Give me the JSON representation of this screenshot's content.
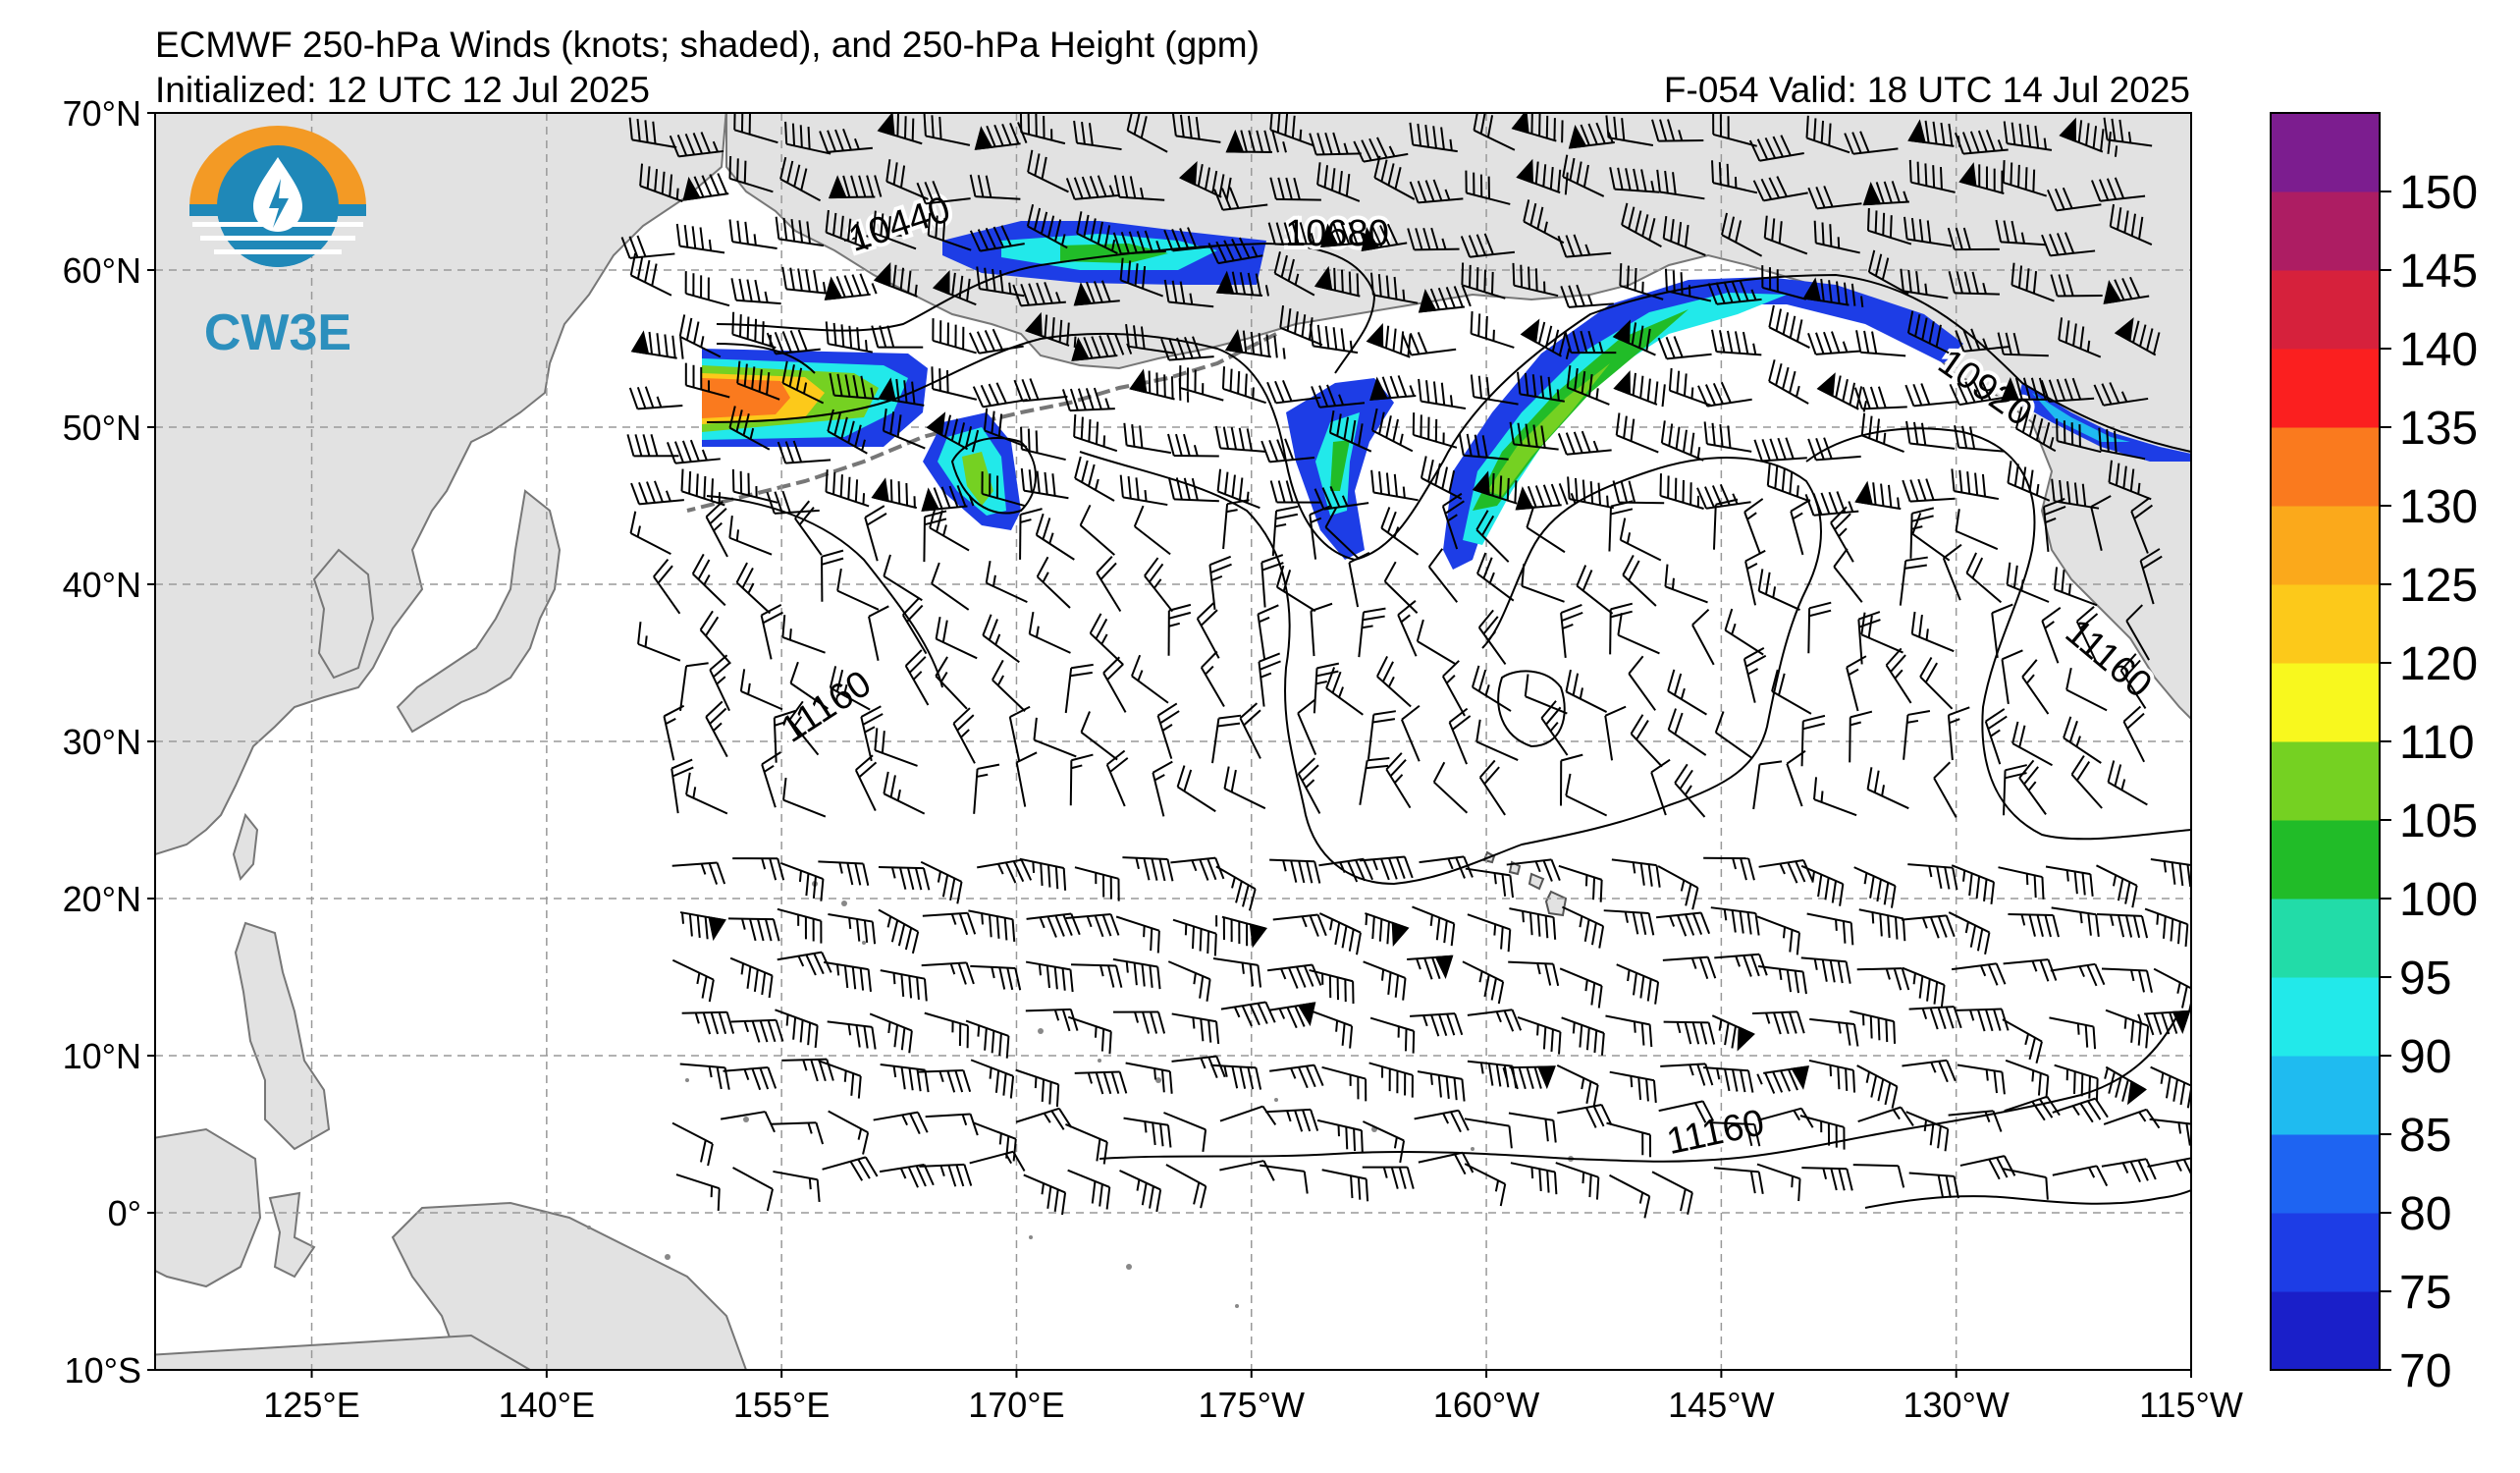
{
  "header": {
    "title": "ECMWF 250-hPa Winds (knots; shaded), and 250-hPa Height (gpm)",
    "initialized": "Initialized: 12 UTC 12 Jul 2025",
    "valid": "F-054  Valid: 18 UTC 14 Jul 2025"
  },
  "logo": {
    "text": "CW3E",
    "icon": "water-drop-lightning-icon"
  },
  "map": {
    "lat_labels": [
      "70°N",
      "60°N",
      "50°N",
      "40°N",
      "30°N",
      "20°N",
      "10°N",
      "0°",
      "10°S"
    ],
    "lon_labels": [
      "125°E",
      "140°E",
      "155°E",
      "170°E",
      "175°W",
      "160°W",
      "145°W",
      "130°W",
      "115°W"
    ],
    "contour_labels": [
      "10440",
      "10680",
      "10920",
      "11160",
      "11160",
      "11160"
    ],
    "colors": {
      "land": "#e2e2e2",
      "coast": "#777777",
      "ocean": "#ffffff"
    }
  },
  "colorbar": {
    "ticks": [
      "150",
      "145",
      "140",
      "135",
      "130",
      "125",
      "120",
      "110",
      "105",
      "100",
      "95",
      "90",
      "85",
      "80",
      "75",
      "70"
    ],
    "colors": [
      "#1a1fc9",
      "#1d3de6",
      "#1e64f2",
      "#1fbbf0",
      "#22e9ea",
      "#22dca8",
      "#21bc28",
      "#75d122",
      "#f8f81e",
      "#fcc91a",
      "#fba91b",
      "#fa7a1e",
      "#fb1f1f",
      "#d6213c",
      "#ad1d63",
      "#7c1d8f"
    ]
  }
}
